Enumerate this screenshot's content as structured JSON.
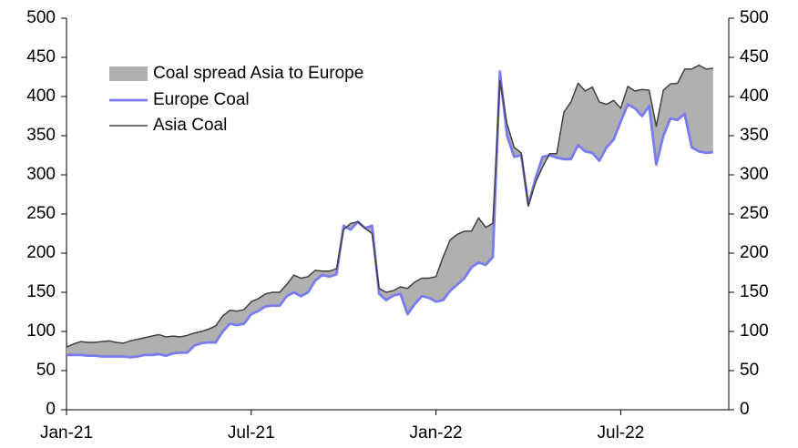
{
  "chart_data": {
    "type": "line",
    "categories": [
      "Jan-21",
      null,
      null,
      null,
      null,
      null,
      null,
      null,
      null,
      null,
      null,
      null,
      null,
      null,
      null,
      null,
      null,
      null,
      null,
      null,
      null,
      null,
      null,
      null,
      null,
      null,
      "Jul-21",
      null,
      null,
      null,
      null,
      null,
      null,
      null,
      null,
      null,
      null,
      null,
      null,
      null,
      null,
      null,
      null,
      null,
      null,
      null,
      null,
      null,
      null,
      null,
      null,
      null,
      "Jan-22",
      null,
      null,
      null,
      null,
      null,
      null,
      null,
      null,
      null,
      null,
      null,
      null,
      null,
      null,
      null,
      null,
      null,
      null,
      null,
      null,
      null,
      null,
      null,
      null,
      null,
      "Jul-22",
      null,
      null,
      null,
      null,
      null,
      null,
      null,
      null,
      null,
      null,
      null,
      null,
      null
    ],
    "series": [
      {
        "name": "Coal spread Asia to Europe",
        "color": "#b0b0b0"
      },
      {
        "name": "Europe Coal",
        "color": "#7b7bf0",
        "values": [
          70,
          70,
          70,
          69,
          69,
          68,
          68,
          68,
          68,
          67,
          68,
          70,
          70,
          71,
          69,
          72,
          73,
          73,
          82,
          85,
          86,
          86,
          100,
          110,
          108,
          110,
          122,
          126,
          132,
          133,
          133,
          145,
          150,
          145,
          150,
          165,
          172,
          170,
          173,
          235,
          230,
          240,
          232,
          235,
          148,
          140,
          146,
          148,
          122,
          135,
          145,
          143,
          138,
          140,
          152,
          160,
          168,
          182,
          188,
          185,
          195,
          432,
          350,
          323,
          325,
          262,
          295,
          323,
          325,
          322,
          320,
          320,
          338,
          330,
          328,
          318,
          335,
          345,
          368,
          390,
          385,
          375,
          388,
          313,
          350,
          372,
          370,
          378,
          335,
          330,
          328,
          329
        ]
      },
      {
        "name": "Asia Coal",
        "color": "#404040",
        "values": [
          80,
          84,
          87,
          86,
          86,
          87,
          88,
          86,
          85,
          88,
          90,
          92,
          94,
          96,
          93,
          94,
          93,
          95,
          98,
          100,
          103,
          107,
          120,
          127,
          126,
          128,
          138,
          142,
          148,
          150,
          150,
          160,
          172,
          168,
          170,
          178,
          177,
          177,
          180,
          230,
          238,
          240,
          232,
          225,
          155,
          150,
          152,
          157,
          155,
          163,
          168,
          168,
          170,
          195,
          217,
          224,
          228,
          228,
          245,
          233,
          238,
          420,
          365,
          335,
          328,
          260,
          290,
          310,
          327,
          327,
          380,
          393,
          417,
          407,
          412,
          393,
          390,
          395,
          385,
          413,
          407,
          409,
          408,
          362,
          408,
          416,
          417,
          435,
          435,
          440,
          435,
          436
        ]
      }
    ],
    "ylim": [
      0,
      500
    ],
    "yticks": [
      0,
      50,
      100,
      150,
      200,
      250,
      300,
      350,
      400,
      450,
      500
    ],
    "y2lim": [
      0,
      500
    ],
    "y2ticks": [
      0,
      50,
      100,
      150,
      200,
      250,
      300,
      350,
      400,
      450,
      500
    ],
    "legend": "upper left",
    "grid": false
  }
}
